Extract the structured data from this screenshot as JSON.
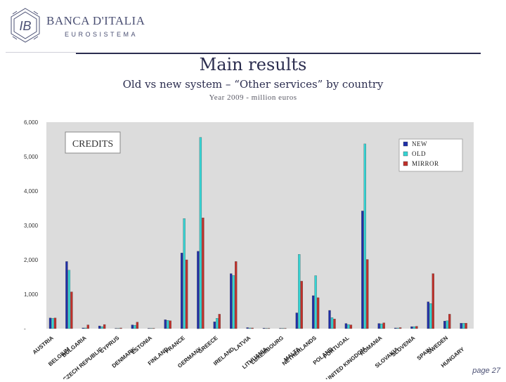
{
  "header": {
    "brand_name": "BANCA D'ITALIA",
    "brand_sub": "EUROSISTEMA"
  },
  "slide": {
    "title": "Main results",
    "subtitle": "Old vs new system – “Other services” by country",
    "subsubtitle": "Year 2009 - million euros",
    "page": "page 27"
  },
  "colors": {
    "new": "#1f2fa8",
    "old": "#35d4d4",
    "mirror": "#c0302a",
    "plot_bg": "#dcdcdc",
    "brand": "#2b2d4f"
  },
  "chart_data": {
    "type": "bar",
    "panel_label": "CREDITS",
    "legend_position": "top-right",
    "grid": false,
    "ylim": [
      0,
      6000
    ],
    "yticks": [
      "-",
      "1,000",
      "2,000",
      "3,000",
      "4,000",
      "5,000",
      "6,000"
    ],
    "categories": [
      "AUSTRIA",
      "BELGIUM",
      "BULGARIA",
      "CZECH REPUBLIC",
      "CYPRUS",
      "DENMARK",
      "ESTONIA",
      "FINLAND",
      "FRANCE",
      "GERMANY",
      "GREECE",
      "IRELAND",
      "LATVIA",
      "LITHUANIA",
      "LUXEMBOURG",
      "MALTA",
      "NETHERLANDS",
      "POLAND",
      "PORTUGAL",
      "UNITED KINGDOM",
      "ROMANIA",
      "SLOVAKIA",
      "SLOVENIA",
      "SPAIN",
      "SWEDEN",
      "HUNGARY"
    ],
    "series": [
      {
        "name": "NEW",
        "values": [
          310,
          1950,
          20,
          80,
          10,
          110,
          10,
          260,
          2200,
          2250,
          200,
          1600,
          30,
          15,
          10,
          460,
          960,
          530,
          150,
          3420,
          150,
          20,
          60,
          780,
          220,
          160
        ]
      },
      {
        "name": "OLD",
        "values": [
          300,
          1700,
          20,
          60,
          10,
          100,
          10,
          240,
          3200,
          5560,
          300,
          1550,
          20,
          10,
          10,
          2160,
          1540,
          320,
          120,
          5370,
          140,
          20,
          60,
          730,
          230,
          160
        ]
      },
      {
        "name": "MIRROR",
        "values": [
          310,
          1070,
          110,
          120,
          20,
          190,
          10,
          230,
          2000,
          3220,
          420,
          1950,
          20,
          10,
          10,
          1380,
          900,
          280,
          110,
          2010,
          170,
          30,
          70,
          1600,
          420,
          160
        ]
      }
    ]
  }
}
